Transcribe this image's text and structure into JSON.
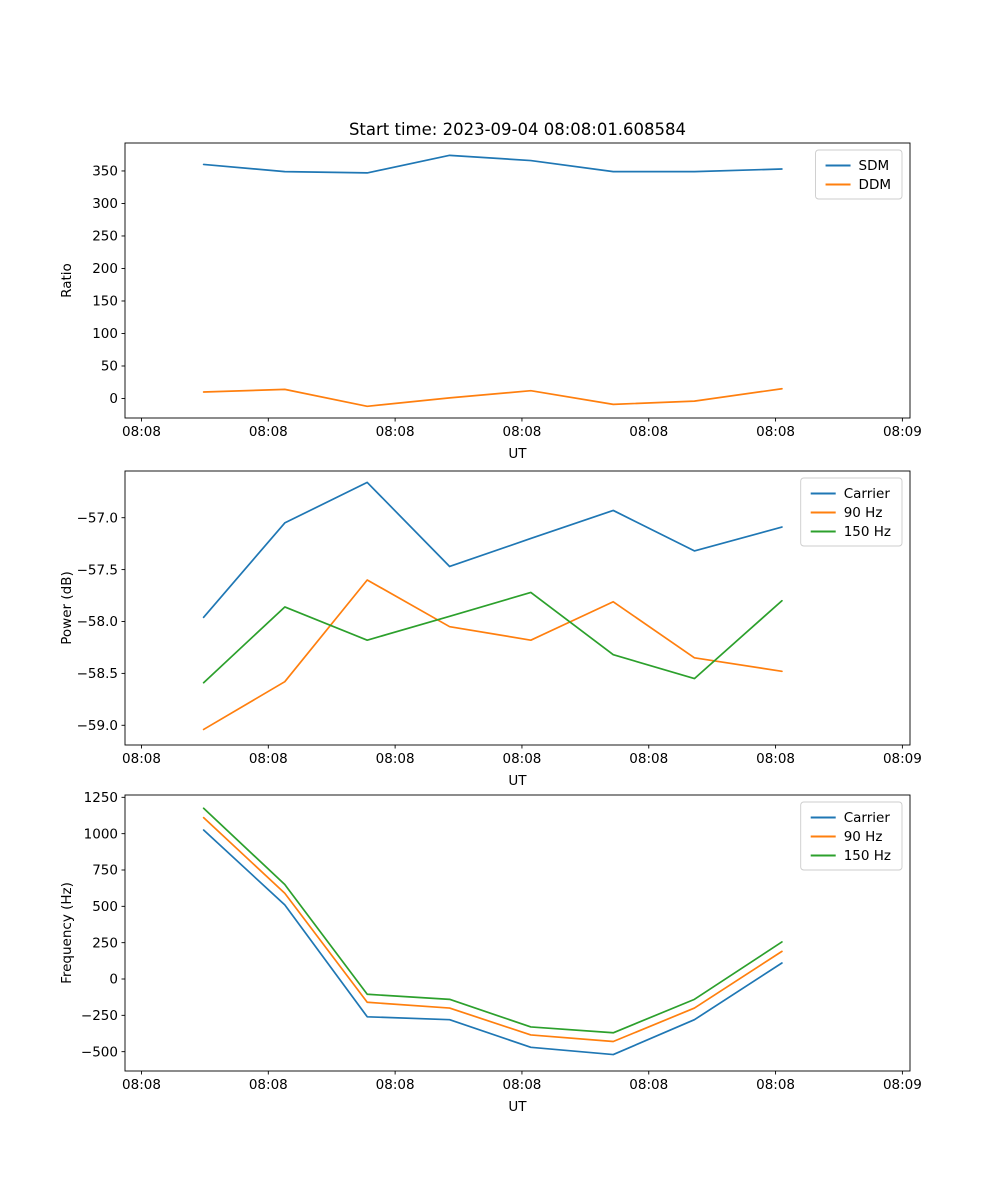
{
  "figure": {
    "title": "Start time: 2023-09-04 08:08:01.608584",
    "background": "#ffffff"
  },
  "palette": {
    "blue": "#1f77b4",
    "orange": "#ff7f0e",
    "green": "#2ca02c"
  },
  "axes_shared": {
    "xlabel": "UT",
    "xlim_seconds": [
      -1.3,
      60.6
    ],
    "x_ticks": {
      "seconds": [
        0,
        10,
        20,
        30,
        40,
        50,
        60
      ],
      "labels": [
        "08:08",
        "08:08",
        "08:08",
        "08:08",
        "08:08",
        "08:08",
        "08:09"
      ]
    },
    "x_seconds": [
      4.9,
      11.3,
      17.8,
      24.3,
      30.7,
      37.2,
      43.6,
      50.5
    ]
  },
  "chart_data": [
    {
      "id": "ratio",
      "type": "line",
      "title": "Start time: 2023-09-04 08:08:01.608584",
      "xlabel": "UT",
      "ylabel": "Ratio",
      "ylim": [
        -30,
        393
      ],
      "grid": false,
      "legend_position": "upper right",
      "yticks": {
        "values": [
          0,
          50,
          100,
          150,
          200,
          250,
          300,
          350
        ],
        "labels": [
          "0",
          "50",
          "100",
          "150",
          "200",
          "250",
          "300",
          "350"
        ]
      },
      "series": [
        {
          "name": "SDM",
          "color": "#1f77b4",
          "values": [
            360,
            349,
            347,
            374,
            366,
            349,
            349,
            353
          ]
        },
        {
          "name": "DDM",
          "color": "#ff7f0e",
          "values": [
            10,
            14,
            -12,
            1,
            12,
            -9,
            -4,
            15
          ]
        }
      ]
    },
    {
      "id": "power",
      "type": "line",
      "title": "",
      "xlabel": "UT",
      "ylabel": "Power (dB)",
      "ylim": [
        -59.19,
        -56.55
      ],
      "grid": false,
      "legend_position": "upper right",
      "yticks": {
        "values": [
          -59.0,
          -58.5,
          -58.0,
          -57.5,
          -57.0
        ],
        "labels": [
          "−59.0",
          "−58.5",
          "−58.0",
          "−57.5",
          "−57.0"
        ]
      },
      "series": [
        {
          "name": "Carrier",
          "color": "#1f77b4",
          "values": [
            -57.96,
            -57.05,
            -56.66,
            -57.47,
            -57.2,
            -56.93,
            -57.32,
            -57.09
          ]
        },
        {
          "name": "90 Hz",
          "color": "#ff7f0e",
          "values": [
            -59.04,
            -58.58,
            -57.6,
            -58.05,
            -58.18,
            -57.81,
            -58.35,
            -58.48
          ]
        },
        {
          "name": "150 Hz",
          "color": "#2ca02c",
          "values": [
            -58.59,
            -57.86,
            -58.18,
            -57.95,
            -57.72,
            -58.32,
            -58.55,
            -57.8
          ]
        }
      ]
    },
    {
      "id": "frequency",
      "type": "line",
      "title": "",
      "xlabel": "UT",
      "ylabel": "Frequency (Hz)",
      "ylim": [
        -633,
        1266
      ],
      "grid": false,
      "legend_position": "upper right",
      "yticks": {
        "values": [
          -500,
          -250,
          0,
          250,
          500,
          750,
          1000,
          1250
        ],
        "labels": [
          "−500",
          "−250",
          "0",
          "250",
          "500",
          "750",
          "1000",
          "1250"
        ]
      },
      "series": [
        {
          "name": "Carrier",
          "color": "#1f77b4",
          "values": [
            1025,
            510,
            -260,
            -280,
            -470,
            -520,
            -280,
            110
          ]
        },
        {
          "name": "90 Hz",
          "color": "#ff7f0e",
          "values": [
            1110,
            590,
            -160,
            -200,
            -385,
            -430,
            -200,
            190
          ]
        },
        {
          "name": "150 Hz",
          "color": "#2ca02c",
          "values": [
            1175,
            650,
            -105,
            -140,
            -330,
            -370,
            -140,
            255
          ]
        }
      ]
    }
  ]
}
